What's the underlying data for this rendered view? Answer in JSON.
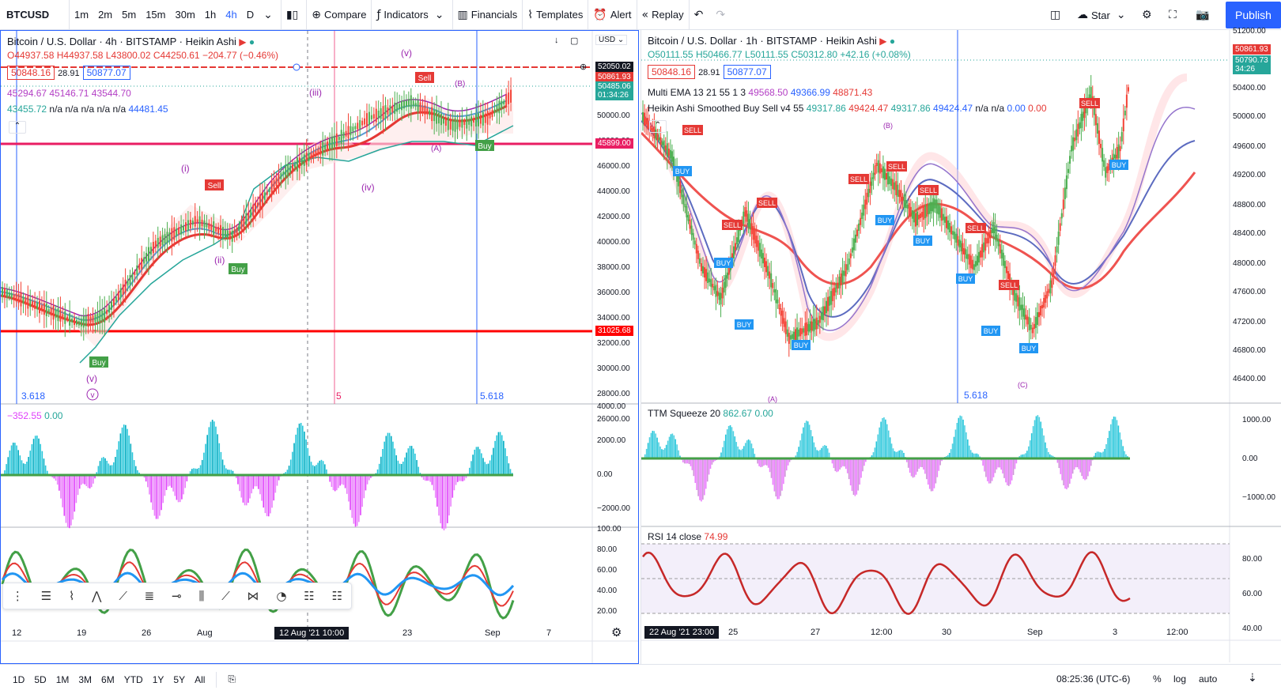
{
  "topbar": {
    "symbol": "BTCUSD",
    "intervals": [
      "1m",
      "2m",
      "5m",
      "15m",
      "30m",
      "1h",
      "4h",
      "D"
    ],
    "active_interval": "4h",
    "compare": "Compare",
    "indicators": "Indicators",
    "financials": "Financials",
    "templates": "Templates",
    "alert": "Alert",
    "replay": "Replay",
    "star": "Star",
    "publish": "Publish"
  },
  "left_chart": {
    "title": "Bitcoin / U.S. Dollar · 4h · BITSTAMP · Heikin Ashi",
    "ohlc": {
      "o": "O44937.58",
      "h": "H44937.58",
      "l": "L43800.02",
      "c": "C44250.61",
      "chg": "−204.77 (−0.46%)"
    },
    "bid": "50848.16",
    "spread": "28.91",
    "ask": "50877.07",
    "ema_line": "45294.67  45146.71  43544.70",
    "ind_line_a": "43455.72",
    "ind_line_b": "n/a  n/a  n/a  n/a  n/a",
    "ind_line_c": "44481.45",
    "currency": "USD",
    "price_axis": [
      "50000.00",
      "48000.00",
      "46000.00",
      "44000.00",
      "42000.00",
      "40000.00",
      "38000.00",
      "36000.00",
      "34000.00",
      "32000.00",
      "30000.00",
      "28000.00",
      "26000.00"
    ],
    "price_tags": {
      "red_top": "52050.02",
      "last": "50861.93",
      "green": "50485.06",
      "countdown": "01:34:26",
      "pink": "45899.00",
      "red_bottom": "31025.68"
    },
    "fib_labels": [
      "3.618",
      "5",
      "5.618"
    ],
    "squeeze_value_a": "−352.55",
    "squeeze_value_b": "0.00",
    "squeeze_axis": [
      "4000.00",
      "2000.00",
      "0.00",
      "−2000.00"
    ],
    "rsi_axis": [
      "100.00",
      "80.00",
      "60.00",
      "40.00",
      "20.00"
    ],
    "time_axis": [
      "12",
      "19",
      "26",
      "Aug",
      "23",
      "Sep",
      "7"
    ],
    "time_badge": "12 Aug '21   10:00"
  },
  "right_chart": {
    "title": "Bitcoin / U.S. Dollar · 1h · BITSTAMP · Heikin Ashi",
    "ohlc": {
      "o": "O50111.55",
      "h": "H50466.77",
      "l": "L50111.55",
      "c": "C50312.80",
      "chg": "+42.16 (+0.08%)"
    },
    "bid": "50848.16",
    "spread": "28.91",
    "ask": "50877.07",
    "ema_label": "Multi EMA 13 21 55 1 3",
    "ema_values": [
      "49568.50",
      "49366.99",
      "48871.43"
    ],
    "hass_label": "Heikin Ashi Smoothed Buy Sell v4 55",
    "hass_values": [
      "49317.86",
      "49424.47",
      "49317.86",
      "49424.47"
    ],
    "hass_na": "n/a  n/a",
    "hass_zero": [
      "0.00",
      "0.00"
    ],
    "price_axis": [
      "51200.00",
      "50400.00",
      "50000.00",
      "49600.00",
      "49200.00",
      "48800.00",
      "48400.00",
      "48000.00",
      "47600.00",
      "47200.00",
      "46800.00",
      "46400.00"
    ],
    "price_tags": {
      "last": "50861.93",
      "green": "50790.73",
      "countdown": "34:26"
    },
    "fib_label": "5.618",
    "squeeze_label": "TTM Squeeze 20",
    "squeeze_val_a": "862.67",
    "squeeze_val_b": "0.00",
    "squeeze_axis": [
      "1000.00",
      "0.00",
      "−1000.00"
    ],
    "rsi_label": "RSI 14 close",
    "rsi_value": "74.99",
    "rsi_axis": [
      "80.00",
      "60.00",
      "40.00"
    ],
    "time_axis": [
      "25",
      "27",
      "12:00",
      "30",
      "Sep",
      "3",
      "12:00"
    ],
    "time_badge": "22 Aug '21   23:00"
  },
  "bottombar": {
    "ranges": [
      "1D",
      "5D",
      "1M",
      "3M",
      "6M",
      "YTD",
      "1Y",
      "5Y",
      "All"
    ],
    "clock": "08:25:36 (UTC-6)",
    "percent": "%",
    "log": "log",
    "auto": "auto"
  }
}
